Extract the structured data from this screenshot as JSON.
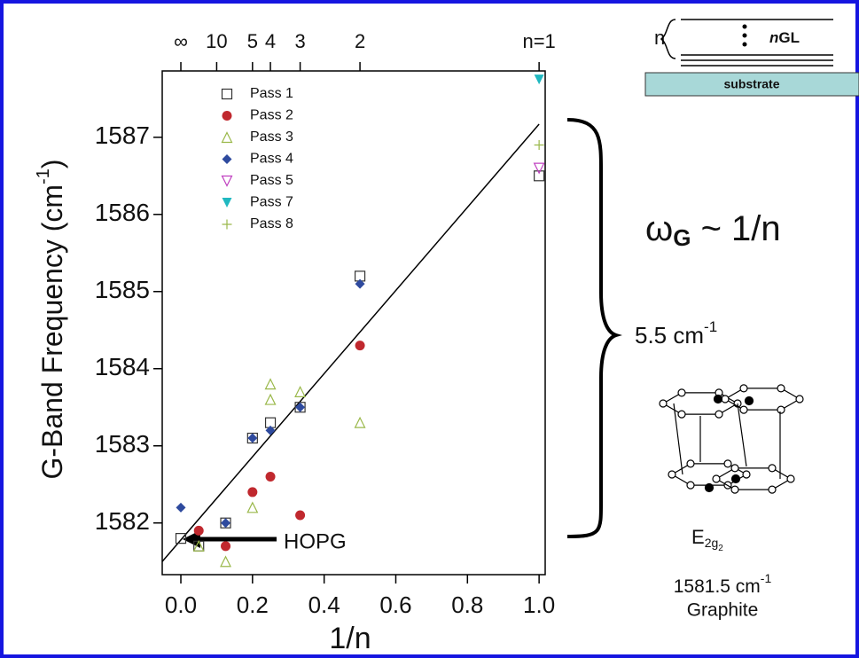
{
  "chart_data": {
    "type": "scatter",
    "title_parts": {
      "y_label": [
        "G-Band Frequency (cm",
        "-1",
        ")"
      ],
      "x_label": "1/n"
    },
    "xlim": [
      -0.052,
      1.017
    ],
    "ylim": [
      1581.33,
      1587.86
    ],
    "xticks": [
      {
        "value": 0,
        "label": "0.0"
      },
      {
        "value": 0.2,
        "label": "0.2"
      },
      {
        "value": 0.4,
        "label": "0.4"
      },
      {
        "value": 0.6,
        "label": "0.6"
      },
      {
        "value": 0.8,
        "label": "0.8"
      },
      {
        "value": 1,
        "label": "1.0"
      }
    ],
    "yticks": [
      1582,
      1583,
      1584,
      1585,
      1586,
      1587
    ],
    "x2ticks": [
      {
        "value": 0,
        "label": "∞"
      },
      {
        "value": 0.1,
        "label": "10"
      },
      {
        "value": 0.2,
        "label": "5"
      },
      {
        "value": 0.25,
        "label": "4"
      },
      {
        "value": 0.333,
        "label": "3"
      },
      {
        "value": 0.5,
        "label": "2"
      },
      {
        "value": 1,
        "label": "n=1"
      }
    ],
    "series": [
      {
        "name": "Pass 1",
        "color": "#333333",
        "marker": "square-open",
        "x": [
          0,
          0.05,
          0.125,
          0.2,
          0.25,
          0.333,
          0.5,
          1
        ],
        "values": [
          1581.8,
          1581.7,
          1582.0,
          1583.1,
          1583.3,
          1583.5,
          1585.2,
          1586.5
        ]
      },
      {
        "name": "Pass 2",
        "color": "#c0282e",
        "marker": "circle",
        "x": [
          0.05,
          0.125,
          0.2,
          0.25,
          0.333,
          0.5
        ],
        "values": [
          1581.9,
          1581.7,
          1582.4,
          1582.6,
          1582.1,
          1584.3
        ]
      },
      {
        "name": "Pass 3",
        "color": "#9ab84a",
        "marker": "triangle-open",
        "x": [
          0.05,
          0.125,
          0.2,
          0.25,
          0.25,
          0.333,
          0.5
        ],
        "values": [
          1581.7,
          1581.5,
          1582.2,
          1583.8,
          1583.6,
          1583.7,
          1583.3
        ]
      },
      {
        "name": "Pass 4",
        "color": "#2e4a9e",
        "marker": "diamond",
        "x": [
          0,
          0.125,
          0.2,
          0.25,
          0.333,
          0.5
        ],
        "values": [
          1582.2,
          1582.0,
          1583.1,
          1583.2,
          1583.5,
          1585.1
        ]
      },
      {
        "name": "Pass 5",
        "color": "#c040c0",
        "marker": "triangle-down-open",
        "x": [
          1
        ],
        "values": [
          1586.6
        ]
      },
      {
        "name": "Pass 7",
        "color": "#20b8c0",
        "marker": "triangle-down",
        "x": [
          1
        ],
        "values": [
          1587.75
        ]
      },
      {
        "name": "Pass 8",
        "color": "#9ab84a",
        "marker": "plus",
        "x": [
          1
        ],
        "values": [
          1586.9
        ]
      }
    ],
    "fit": {
      "color": "#000000",
      "x": [
        -0.052,
        1.0
      ],
      "values": [
        1581.5,
        1587.17
      ]
    },
    "annotations": {
      "hopg": "HOPG",
      "omega": [
        "ω",
        "G",
        " ~ 1/n"
      ],
      "shift": [
        "5.5 cm",
        "-1"
      ],
      "mode": [
        "E",
        "2g",
        "2"
      ],
      "graphite_freq": [
        "1581.5 cm",
        "-1"
      ],
      "graphite": "Graphite",
      "n": "n",
      "ngl": [
        "n",
        "GL"
      ],
      "substrate": "substrate"
    }
  }
}
